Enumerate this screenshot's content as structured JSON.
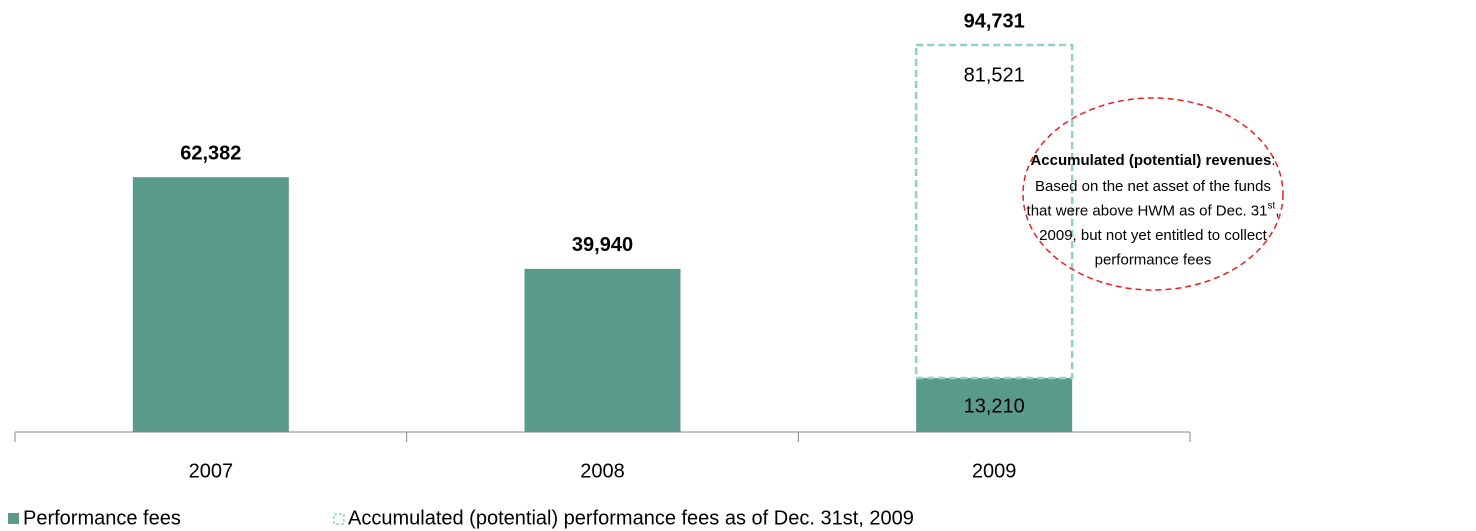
{
  "chart_data": {
    "type": "stacked_bar",
    "categories": [
      "2007",
      "2008",
      "2009"
    ],
    "series": [
      {
        "name": "Performance fees",
        "color": "#5a9a8a",
        "values": [
          62382,
          39940,
          13210
        ],
        "value_labels": [
          null,
          null,
          "13,210"
        ]
      },
      {
        "name": "Accumulated (potential) performance fees as of Dec. 31st, 2009",
        "color": "#8fd3c6",
        "dashed": true,
        "values": [
          null,
          null,
          81521
        ],
        "value_labels": [
          null,
          null,
          "81,521"
        ]
      }
    ],
    "totals": [
      62382,
      39940,
      94731
    ],
    "total_labels": [
      "62,382",
      "39,940",
      "94,731"
    ],
    "ylim": [
      0,
      100000
    ],
    "annotation": {
      "title": "Accumulated (potential) revenues",
      "title_suffix": ":",
      "lines": [
        [
          {
            "text": "Based on the net asset of the funds"
          }
        ],
        [
          {
            "text": "that were above HWM as of Dec. 31"
          },
          {
            "text": "st",
            "sup": true
          },
          {
            "text": ","
          }
        ],
        [
          {
            "text": "2009, but not yet entitled to collect"
          }
        ],
        [
          {
            "text": "performance fees"
          }
        ]
      ],
      "color": "#e8201e"
    }
  }
}
